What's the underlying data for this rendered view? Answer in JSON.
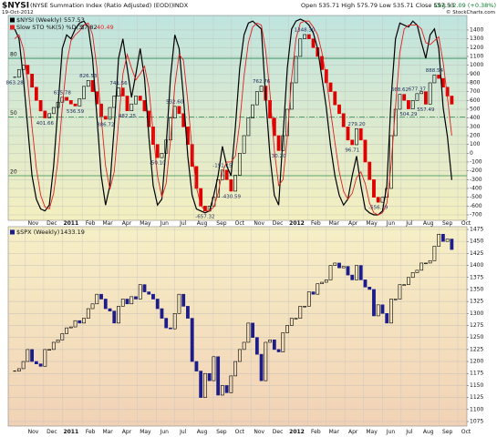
{
  "header": {
    "symbol": "$NYSI",
    "description": "(NYSE Summation Index (Ratio Adjusted) (EOD))",
    "exchange": "INDX",
    "date": "19-Oct-2012",
    "quote": "Open 535.71 High 575.79 Low 535.71 Close 557.53",
    "change": "Chg +2.09 (+0.38%)",
    "credit": "© StockCharts.com"
  },
  "chart_data": [
    {
      "type": "candlestick",
      "name": "$NYSI (Weekly)",
      "indicator": "Slow STO %K(5) %D(3)",
      "up_color": "#000000",
      "down_color": "#e00000",
      "grid": true,
      "values": [
        863.28,
        950,
        1000,
        900,
        750,
        600,
        480,
        401.66,
        450,
        520,
        580,
        635.78,
        600,
        560,
        536.59,
        620,
        760,
        826.53,
        700,
        560,
        420,
        386.72,
        520,
        650,
        741.56,
        650,
        482.25,
        560,
        650,
        600,
        480,
        300,
        100,
        -50.1,
        0,
        150,
        400,
        532.6,
        450,
        300,
        100,
        -150,
        -400,
        -600,
        -657.32,
        -600,
        -500,
        -300,
        -191.15,
        -300,
        -430.59,
        -250,
        0,
        200,
        400,
        550,
        700,
        762.76,
        600,
        400,
        200,
        30.2,
        200,
        500,
        800,
        1100,
        1300,
        1348.3,
        1300,
        1200,
        1100,
        950,
        800,
        700,
        550,
        450,
        300,
        150,
        96.71,
        279.2,
        150,
        -100,
        -300,
        -500,
        -556.29,
        -500,
        -400,
        200,
        500,
        668.62,
        600,
        504.29,
        600,
        677.37,
        700,
        557.49,
        800,
        888.54,
        850,
        750,
        650,
        557.53
      ],
      "value_labels": [
        "863.28",
        null,
        null,
        null,
        null,
        null,
        null,
        "401.66",
        null,
        null,
        null,
        "635.78",
        null,
        null,
        "536.59",
        null,
        null,
        "826.53",
        null,
        null,
        null,
        "386.72",
        null,
        null,
        "741.56",
        null,
        "482.25",
        null,
        null,
        null,
        null,
        null,
        null,
        "-50.10",
        null,
        null,
        null,
        "532.60",
        null,
        null,
        null,
        null,
        null,
        null,
        "-657.32",
        null,
        null,
        null,
        "-191.15",
        null,
        "-430.59",
        null,
        null,
        null,
        null,
        null,
        null,
        "762.76",
        null,
        null,
        null,
        "30.20",
        null,
        null,
        null,
        null,
        null,
        "1348.30",
        null,
        null,
        null,
        null,
        null,
        null,
        null,
        null,
        null,
        null,
        "96.71",
        "279.20",
        null,
        null,
        null,
        null,
        "-556.29",
        null,
        null,
        null,
        null,
        "668.62",
        null,
        "504.29",
        null,
        "677.37",
        null,
        "557.49",
        null,
        "888.54",
        null,
        null,
        null,
        null
      ],
      "series": [
        {
          "color": "#000000",
          "axis": "y2",
          "values": [
            95,
            90,
            70,
            45,
            20,
            8,
            3,
            2,
            5,
            25,
            55,
            85,
            92,
            90,
            95,
            98,
            99,
            96,
            80,
            50,
            20,
            5,
            15,
            45,
            80,
            90,
            75,
            60,
            72,
            85,
            70,
            40,
            15,
            5,
            8,
            35,
            70,
            92,
            85,
            60,
            30,
            10,
            3,
            2,
            1,
            2,
            10,
            20,
            35,
            25,
            20,
            45,
            75,
            92,
            98,
            99,
            97,
            95,
            60,
            30,
            10,
            5,
            40,
            75,
            95,
            99,
            100,
            99,
            97,
            93,
            85,
            70,
            55,
            35,
            20,
            10,
            5,
            8,
            20,
            30,
            15,
            3,
            1,
            0,
            0,
            2,
            15,
            60,
            90,
            98,
            97,
            96,
            99,
            97,
            88,
            80,
            92,
            95,
            85,
            55,
            40,
            17.82
          ]
        },
        {
          "color": "#e02020",
          "axis": "y2",
          "values": [
            90,
            92,
            85,
            68,
            45,
            24,
            10,
            4,
            3,
            11,
            28,
            55,
            77,
            89,
            92,
            94,
            97,
            98,
            92,
            75,
            50,
            25,
            13,
            22,
            47,
            72,
            82,
            75,
            69,
            72,
            76,
            65,
            42,
            20,
            9,
            16,
            38,
            66,
            82,
            79,
            58,
            33,
            14,
            5,
            2,
            2,
            4,
            11,
            22,
            27,
            27,
            30,
            47,
            71,
            88,
            96,
            98,
            97,
            84,
            62,
            33,
            15,
            18,
            40,
            70,
            90,
            98,
            99,
            99,
            96,
            92,
            83,
            70,
            53,
            37,
            22,
            12,
            8,
            11,
            19,
            22,
            16,
            6,
            1,
            0,
            1,
            6,
            26,
            55,
            83,
            95,
            97,
            97,
            97,
            95,
            88,
            87,
            89,
            91,
            78,
            60,
            40.49
          ]
        }
      ],
      "xlim": [
        -1.5,
        104.5
      ],
      "xticks": [
        {
          "value": 2.4,
          "label": "Nov"
        },
        {
          "value": 6.7,
          "label": "Dec"
        },
        {
          "value": 11.1,
          "label": "2011"
        },
        {
          "value": 15.6,
          "label": "Feb"
        },
        {
          "value": 19.6,
          "label": "Mar"
        },
        {
          "value": 24,
          "label": "Apr"
        },
        {
          "value": 28.3,
          "label": "May"
        },
        {
          "value": 32.7,
          "label": "Jun"
        },
        {
          "value": 37,
          "label": "Jul"
        },
        {
          "value": 41.4,
          "label": "Aug"
        },
        {
          "value": 45.9,
          "label": "Sep"
        },
        {
          "value": 50.1,
          "label": "Oct"
        },
        {
          "value": 54.6,
          "label": "Nov"
        },
        {
          "value": 58.9,
          "label": "Dec"
        },
        {
          "value": 63.3,
          "label": "2012"
        },
        {
          "value": 67.7,
          "label": "Feb"
        },
        {
          "value": 71.9,
          "label": "Mar"
        },
        {
          "value": 76.3,
          "label": "Apr"
        },
        {
          "value": 80.6,
          "label": "May"
        },
        {
          "value": 85,
          "label": "Jun"
        },
        {
          "value": 89.3,
          "label": "Jul"
        },
        {
          "value": 93.7,
          "label": "Aug"
        },
        {
          "value": 98.1,
          "label": "Sep"
        },
        {
          "value": 102.4,
          "label": "Oct"
        }
      ],
      "ylim": [
        -762,
        1565
      ],
      "yticks": [
        -700,
        -600,
        -500,
        -400,
        -300,
        -200,
        -100,
        0,
        100,
        200,
        300,
        400,
        500,
        600,
        700,
        800,
        900,
        1000,
        1100,
        1200,
        1300,
        1400
      ],
      "y2lim": [
        -2.8,
        101.9
      ],
      "y2ticks": [
        20,
        50,
        80
      ]
    },
    {
      "type": "candlestick",
      "name": "$SPX (Weekly)",
      "up_color": "#000000",
      "down_color": "#1c1c8a",
      "grid": true,
      "values": [
        1180,
        1185,
        1200,
        1225,
        1200,
        1195,
        1190,
        1225,
        1225,
        1240,
        1245,
        1258,
        1270,
        1272,
        1285,
        1280,
        1290,
        1310,
        1320,
        1340,
        1330,
        1310,
        1305,
        1280,
        1315,
        1330,
        1320,
        1335,
        1330,
        1360,
        1345,
        1340,
        1330,
        1310,
        1290,
        1270,
        1268,
        1300,
        1340,
        1315,
        1290,
        1200,
        1180,
        1125,
        1175,
        1160,
        1210,
        1130,
        1150,
        1135,
        1170,
        1200,
        1225,
        1240,
        1280,
        1250,
        1215,
        1160,
        1240,
        1245,
        1225,
        1220,
        1260,
        1275,
        1290,
        1290,
        1315,
        1315,
        1345,
        1340,
        1362,
        1365,
        1370,
        1400,
        1405,
        1395,
        1398,
        1380,
        1370,
        1400,
        1370,
        1355,
        1350,
        1295,
        1318,
        1300,
        1280,
        1330,
        1330,
        1360,
        1360,
        1375,
        1385,
        1390,
        1405,
        1405,
        1410,
        1440,
        1465,
        1450,
        1455,
        1433.19
      ],
      "xlim": [
        -1.5,
        104.5
      ],
      "xticks": [
        {
          "value": 2.4,
          "label": "Nov"
        },
        {
          "value": 6.7,
          "label": "Dec"
        },
        {
          "value": 11.1,
          "label": "2011"
        },
        {
          "value": 15.6,
          "label": "Feb"
        },
        {
          "value": 19.6,
          "label": "Mar"
        },
        {
          "value": 24,
          "label": "Apr"
        },
        {
          "value": 28.3,
          "label": "May"
        },
        {
          "value": 32.7,
          "label": "Jun"
        },
        {
          "value": 37,
          "label": "Jul"
        },
        {
          "value": 41.4,
          "label": "Aug"
        },
        {
          "value": 45.9,
          "label": "Sep"
        },
        {
          "value": 50.1,
          "label": "Oct"
        },
        {
          "value": 54.6,
          "label": "Nov"
        },
        {
          "value": 58.9,
          "label": "Dec"
        },
        {
          "value": 63.3,
          "label": "2012"
        },
        {
          "value": 67.7,
          "label": "Feb"
        },
        {
          "value": 71.9,
          "label": "Mar"
        },
        {
          "value": 76.3,
          "label": "Apr"
        },
        {
          "value": 80.6,
          "label": "May"
        },
        {
          "value": 85,
          "label": "Jun"
        },
        {
          "value": 89.3,
          "label": "Jul"
        },
        {
          "value": 93.7,
          "label": "Aug"
        },
        {
          "value": 98.1,
          "label": "Sep"
        },
        {
          "value": 102.4,
          "label": "Oct"
        }
      ],
      "ylim": [
        1065.5,
        1480.7
      ],
      "yticks": [
        1075,
        1100,
        1125,
        1150,
        1175,
        1200,
        1225,
        1250,
        1275,
        1300,
        1325,
        1350,
        1375,
        1400,
        1425,
        1450,
        1475
      ]
    }
  ]
}
